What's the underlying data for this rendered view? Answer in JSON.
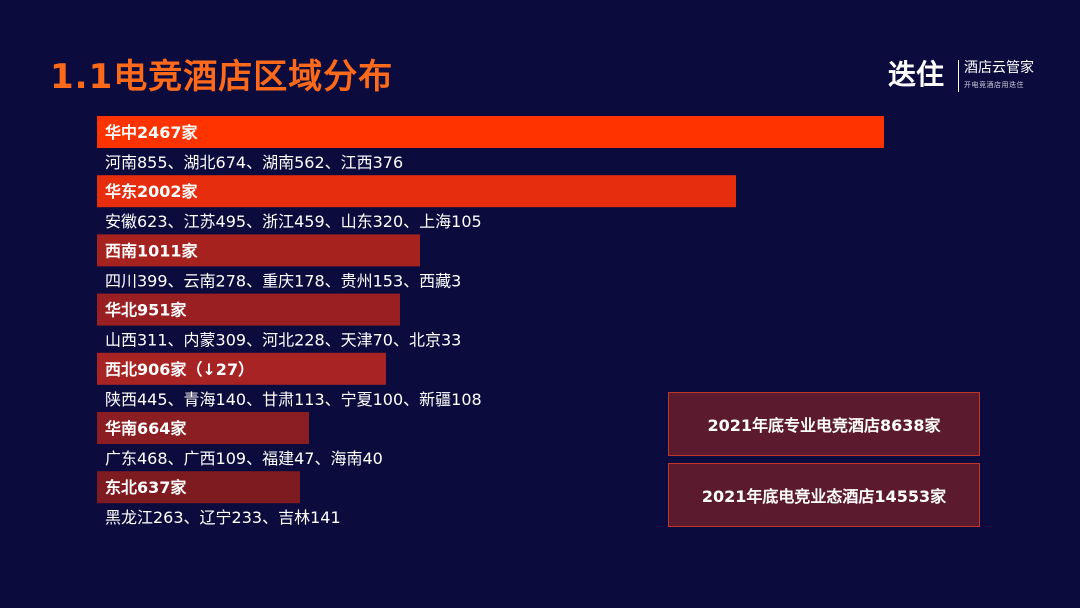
{
  "title": "1.1电竞酒店区域分布",
  "logo": {
    "brand": "迭住",
    "name": "酒店云管家",
    "slogan": "开电竞酒店用迭住"
  },
  "colors": {
    "background": "#0b0c3d",
    "title": "#ff6a1a",
    "bars": [
      "#ff3300",
      "#e62e0e",
      "#a6221e",
      "#9a1f22",
      "#a82424",
      "#8a1e22",
      "#7e1b20"
    ]
  },
  "chart_data": {
    "type": "bar",
    "orientation": "horizontal",
    "categories": [
      "华中",
      "华东",
      "西南",
      "华北",
      "西北",
      "华南",
      "东北"
    ],
    "values": [
      2467,
      2002,
      1011,
      951,
      906,
      664,
      637
    ],
    "bar_labels": [
      "华中2467家",
      "华东2002家",
      "西南1011家",
      "华北951家",
      "西北906家（↓27）",
      "华南664家",
      "东北637家"
    ],
    "details": [
      "河南855、湖北674、湖南562、江西376",
      "安徽623、江苏495、浙江459、山东320、上海105",
      "四川399、云南278、重庆178、贵州153、西藏3",
      "山西311、内蒙309、河北228、天津70、北京33",
      "陕西445、青海140、甘肃113、宁夏100、新疆108",
      "广东468、广西109、福建47、海南40",
      "黑龙江263、辽宁233、吉林141"
    ]
  },
  "stats": [
    "2021年底专业电竞酒店8638家",
    "2021年底电竞业态酒店14553家"
  ]
}
